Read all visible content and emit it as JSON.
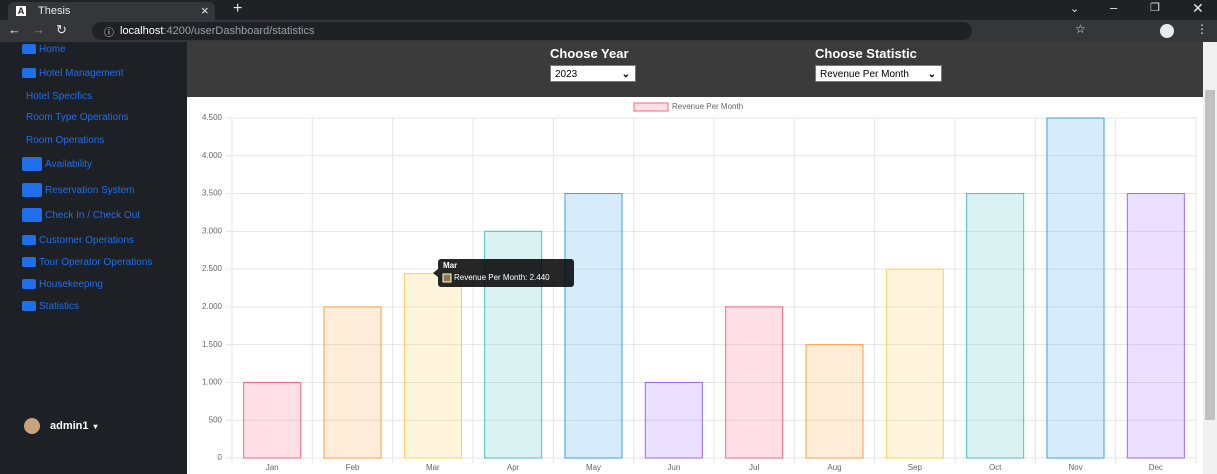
{
  "browser": {
    "tab_title": "Thesis",
    "url_host": "localhost",
    "url_path": ":4200/userDashboard/statistics"
  },
  "sidebar": {
    "items": [
      "Home",
      "Hotel Management",
      "Hotel Specifics",
      "Room Type Operations",
      "Room Operations",
      "Availability",
      "Reservation System",
      "Check In / Check Out",
      "Customer Operations",
      "Tour Operator Operations",
      "Housekeeping",
      "Statistics"
    ],
    "user": "admin1"
  },
  "controls": {
    "year_label": "Choose Year",
    "year_value": "2023",
    "statistic_label": "Choose Statistic",
    "statistic_value": "Revenue Per Month"
  },
  "chart_data": {
    "type": "bar",
    "categories": [
      "Jan",
      "Feb",
      "Mar",
      "Apr",
      "May",
      "Jun",
      "Jul",
      "Aug",
      "Sep",
      "Oct",
      "Nov",
      "Dec"
    ],
    "series": [
      {
        "name": "Revenue Per Month",
        "color": "#ff6384",
        "values": [
          1000,
          2000,
          2440,
          3000,
          3500,
          1000,
          2000,
          1500,
          2500,
          3500,
          4500,
          3500
        ],
        "colors": [
          "#ff6384",
          "#ff9f40",
          "#ffcd56",
          "#4bc0c0",
          "#36a2eb",
          "#9966ff",
          "#ff6384",
          "#ff9f40",
          "#ffcd56",
          "#4bc0c0",
          "#36a2eb",
          "#9966ff"
        ]
      }
    ],
    "ylim": [
      0,
      4500
    ],
    "yticks": [
      0,
      500,
      {
        "value": 1000,
        "label": "1.000"
      },
      {
        "value": 1500,
        "label": "1.500"
      },
      {
        "value": 2000,
        "label": "2.000"
      },
      {
        "value": 2500,
        "label": "2.500"
      },
      {
        "value": 3000,
        "label": "3.000"
      },
      {
        "value": 3500,
        "label": "3.500"
      },
      {
        "value": 4000,
        "label": "4.000"
      },
      {
        "value": 4500,
        "label": "4.500"
      }
    ],
    "grid": true,
    "legend": "top",
    "tooltip": {
      "title": "Mar",
      "label": "Revenue Per Month: 2.440"
    }
  }
}
